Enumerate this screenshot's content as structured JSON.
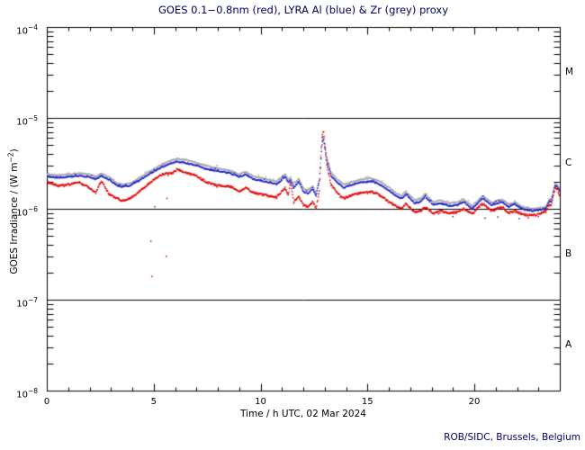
{
  "labels": {
    "credit": "ROB/SIDC, Brussels, Belgium"
  },
  "axes": {
    "ylabel_parts": {
      "prefix": "GOES Irradiance / (W m",
      "exp": "−2",
      "suffix": ")"
    },
    "y_ticks": [
      {
        "base": "10",
        "exp": "−4"
      },
      {
        "base": "10",
        "exp": "−5"
      },
      {
        "base": "10",
        "exp": "−6"
      },
      {
        "base": "10",
        "exp": "−7"
      },
      {
        "base": "10",
        "exp": "−8"
      }
    ],
    "x_ticks": [
      {
        "label": "0"
      },
      {
        "label": "5"
      },
      {
        "label": "10"
      },
      {
        "label": "15"
      },
      {
        "label": "20"
      }
    ]
  },
  "chart_data": {
    "type": "scatter",
    "title": "GOES 0.1−0.8nm (red), LYRA Al (blue) & Zr (grey) proxy",
    "xlabel": "Time / h UTC, 02 Mar 2024",
    "ylabel": "GOES Irradiance / (W m−2)",
    "x_range_hours": [
      0,
      24
    ],
    "x_major_ticks": [
      0,
      5,
      10,
      15,
      20
    ],
    "x_minor_step_hours": 1,
    "y_log_range_W_m2": [
      1e-08,
      0.0001
    ],
    "y_decade_gridline_exponents": [
      -5,
      -6,
      -7
    ],
    "flare_classes": [
      "M",
      "C",
      "B",
      "A"
    ],
    "value_units": "1e-6 W m-2",
    "frame_color": "#000000",
    "series": [
      {
        "name": "LYRA Zr proxy",
        "color": "#a8a8a8",
        "points": [
          [
            0,
            2.4
          ],
          [
            0.5,
            2.35
          ],
          [
            1,
            2.4
          ],
          [
            1.5,
            2.45
          ],
          [
            2,
            2.4
          ],
          [
            2.3,
            2.25
          ],
          [
            2.55,
            2.45
          ],
          [
            2.9,
            2.25
          ],
          [
            3.3,
            1.9
          ],
          [
            3.5,
            1.85
          ],
          [
            3.9,
            1.9
          ],
          [
            4.4,
            2.25
          ],
          [
            4.9,
            2.65
          ],
          [
            5.4,
            3.1
          ],
          [
            5.9,
            3.45
          ],
          [
            6.1,
            3.55
          ],
          [
            6.5,
            3.45
          ],
          [
            7,
            3.2
          ],
          [
            7.5,
            2.95
          ],
          [
            8,
            2.8
          ],
          [
            8.6,
            2.6
          ],
          [
            9,
            2.4
          ],
          [
            9.3,
            2.55
          ],
          [
            9.7,
            2.25
          ],
          [
            10,
            2.2
          ],
          [
            10.4,
            2.1
          ],
          [
            10.75,
            2.0
          ],
          [
            11.15,
            2.4
          ],
          [
            11.3,
            2.1
          ],
          [
            11.4,
            2.2
          ],
          [
            11.55,
            1.85
          ],
          [
            11.8,
            2.15
          ],
          [
            12.0,
            1.68
          ],
          [
            12.2,
            1.58
          ],
          [
            12.45,
            1.78
          ],
          [
            12.6,
            1.5
          ],
          [
            12.75,
            2.15
          ],
          [
            12.88,
            5.9
          ],
          [
            12.95,
            6.3
          ],
          [
            13.1,
            3.7
          ],
          [
            13.3,
            2.5
          ],
          [
            13.6,
            2.1
          ],
          [
            13.9,
            1.85
          ],
          [
            14.3,
            2.0
          ],
          [
            14.7,
            2.1
          ],
          [
            15.2,
            2.15
          ],
          [
            15.5,
            2.05
          ],
          [
            16,
            1.72
          ],
          [
            16.4,
            1.45
          ],
          [
            16.6,
            1.4
          ],
          [
            16.8,
            1.55
          ],
          [
            17.2,
            1.25
          ],
          [
            17.5,
            1.3
          ],
          [
            17.7,
            1.45
          ],
          [
            18.1,
            1.18
          ],
          [
            18.4,
            1.25
          ],
          [
            18.8,
            1.15
          ],
          [
            19.2,
            1.18
          ],
          [
            19.5,
            1.28
          ],
          [
            19.9,
            1.07
          ],
          [
            20.4,
            1.4
          ],
          [
            20.8,
            1.17
          ],
          [
            21.3,
            1.27
          ],
          [
            21.6,
            1.12
          ],
          [
            21.9,
            1.18
          ],
          [
            22.3,
            1.04
          ],
          [
            22.7,
            1.0
          ],
          [
            23.1,
            1.02
          ],
          [
            23.35,
            1.05
          ],
          [
            23.5,
            1.27
          ],
          [
            23.6,
            1.27
          ],
          [
            23.78,
            1.92
          ],
          [
            23.88,
            1.85
          ],
          [
            24,
            1.62
          ]
        ]
      },
      {
        "name": "LYRA Al proxy",
        "color": "#2020cc",
        "points": [
          [
            0,
            2.27
          ],
          [
            0.5,
            2.2
          ],
          [
            1,
            2.25
          ],
          [
            1.5,
            2.3
          ],
          [
            2,
            2.25
          ],
          [
            2.3,
            2.1
          ],
          [
            2.55,
            2.3
          ],
          [
            2.9,
            2.1
          ],
          [
            3.3,
            1.8
          ],
          [
            3.5,
            1.75
          ],
          [
            3.9,
            1.8
          ],
          [
            4.4,
            2.1
          ],
          [
            4.9,
            2.5
          ],
          [
            5.4,
            2.9
          ],
          [
            5.9,
            3.2
          ],
          [
            6.1,
            3.3
          ],
          [
            6.5,
            3.2
          ],
          [
            7,
            3.0
          ],
          [
            7.5,
            2.73
          ],
          [
            8,
            2.6
          ],
          [
            8.6,
            2.45
          ],
          [
            9,
            2.25
          ],
          [
            9.3,
            2.4
          ],
          [
            9.7,
            2.1
          ],
          [
            10,
            2.05
          ],
          [
            10.4,
            1.95
          ],
          [
            10.75,
            1.85
          ],
          [
            11.15,
            2.25
          ],
          [
            11.3,
            1.95
          ],
          [
            11.4,
            2.05
          ],
          [
            11.55,
            1.7
          ],
          [
            11.8,
            2.0
          ],
          [
            12.0,
            1.55
          ],
          [
            12.2,
            1.47
          ],
          [
            12.45,
            1.65
          ],
          [
            12.6,
            1.4
          ],
          [
            12.75,
            2.0
          ],
          [
            12.88,
            5.3
          ],
          [
            12.95,
            5.8
          ],
          [
            13.1,
            3.4
          ],
          [
            13.3,
            2.3
          ],
          [
            13.6,
            1.95
          ],
          [
            13.9,
            1.7
          ],
          [
            14.3,
            1.85
          ],
          [
            14.7,
            1.95
          ],
          [
            15.2,
            2.0
          ],
          [
            15.5,
            1.9
          ],
          [
            16,
            1.6
          ],
          [
            16.4,
            1.35
          ],
          [
            16.6,
            1.3
          ],
          [
            16.8,
            1.45
          ],
          [
            17.2,
            1.15
          ],
          [
            17.5,
            1.2
          ],
          [
            17.7,
            1.35
          ],
          [
            18.1,
            1.1
          ],
          [
            18.4,
            1.15
          ],
          [
            18.8,
            1.08
          ],
          [
            19.2,
            1.1
          ],
          [
            19.5,
            1.2
          ],
          [
            19.9,
            1.0
          ],
          [
            20.4,
            1.32
          ],
          [
            20.8,
            1.1
          ],
          [
            21.3,
            1.2
          ],
          [
            21.6,
            1.05
          ],
          [
            21.9,
            1.12
          ],
          [
            22.3,
            0.98
          ],
          [
            22.7,
            0.95
          ],
          [
            23.1,
            0.97
          ],
          [
            23.35,
            1.0
          ],
          [
            23.5,
            1.2
          ],
          [
            23.6,
            1.2
          ],
          [
            23.78,
            1.8
          ],
          [
            23.88,
            1.75
          ],
          [
            24,
            1.55
          ]
        ]
      },
      {
        "name": "GOES 0.1-0.8nm",
        "color": "#e00000",
        "points": [
          [
            0,
            1.97
          ],
          [
            0.5,
            1.8
          ],
          [
            1,
            1.85
          ],
          [
            1.5,
            1.95
          ],
          [
            2,
            1.7
          ],
          [
            2.3,
            1.5
          ],
          [
            2.55,
            2.05
          ],
          [
            2.9,
            1.45
          ],
          [
            3.3,
            1.3
          ],
          [
            3.5,
            1.22
          ],
          [
            3.9,
            1.3
          ],
          [
            4.4,
            1.6
          ],
          [
            4.9,
            2.0
          ],
          [
            5.4,
            2.4
          ],
          [
            5.9,
            2.5
          ],
          [
            6.1,
            2.7
          ],
          [
            6.5,
            2.5
          ],
          [
            7,
            2.3
          ],
          [
            7.5,
            1.94
          ],
          [
            8,
            1.8
          ],
          [
            8.6,
            1.75
          ],
          [
            9,
            1.55
          ],
          [
            9.3,
            1.7
          ],
          [
            9.7,
            1.5
          ],
          [
            10,
            1.45
          ],
          [
            10.4,
            1.38
          ],
          [
            10.75,
            1.35
          ],
          [
            11.15,
            1.7
          ],
          [
            11.3,
            1.45
          ],
          [
            11.4,
            1.95
          ],
          [
            11.55,
            1.2
          ],
          [
            11.8,
            1.35
          ],
          [
            12.0,
            1.1
          ],
          [
            12.2,
            1.05
          ],
          [
            12.45,
            1.2
          ],
          [
            12.6,
            1.0
          ],
          [
            12.75,
            1.6
          ],
          [
            12.88,
            6.5
          ],
          [
            12.95,
            7.0
          ],
          [
            13.1,
            3.0
          ],
          [
            13.3,
            1.85
          ],
          [
            13.6,
            1.5
          ],
          [
            13.9,
            1.3
          ],
          [
            14.3,
            1.42
          ],
          [
            14.7,
            1.5
          ],
          [
            15.2,
            1.55
          ],
          [
            15.5,
            1.45
          ],
          [
            16,
            1.2
          ],
          [
            16.4,
            1.05
          ],
          [
            16.6,
            1.0
          ],
          [
            16.8,
            1.15
          ],
          [
            17.2,
            0.92
          ],
          [
            17.5,
            0.95
          ],
          [
            17.7,
            1.05
          ],
          [
            18.1,
            0.88
          ],
          [
            18.4,
            0.95
          ],
          [
            18.8,
            0.9
          ],
          [
            19.2,
            0.92
          ],
          [
            19.5,
            1.0
          ],
          [
            19.9,
            0.88
          ],
          [
            20.4,
            1.15
          ],
          [
            20.8,
            0.95
          ],
          [
            21.3,
            1.05
          ],
          [
            21.6,
            0.9
          ],
          [
            21.9,
            0.95
          ],
          [
            22.3,
            0.86
          ],
          [
            22.7,
            0.85
          ],
          [
            23.1,
            0.88
          ],
          [
            23.35,
            0.95
          ],
          [
            23.5,
            1.1
          ],
          [
            23.6,
            1.1
          ],
          [
            23.78,
            1.7
          ],
          [
            23.88,
            1.65
          ],
          [
            24,
            1.4
          ]
        ]
      }
    ],
    "outliers": [
      {
        "series": "GOES 0.1-0.8nm",
        "color": "#e00000",
        "points": [
          [
            4.87,
            0.44
          ],
          [
            5.59,
            0.3
          ],
          [
            4.92,
            0.18
          ],
          [
            5.05,
            1.05
          ],
          [
            5.62,
            1.3
          ]
        ]
      },
      {
        "series": "LYRA Al proxy",
        "color": "#2020cc",
        "points": [
          [
            20.5,
            0.79
          ],
          [
            21.1,
            0.81
          ],
          [
            22.1,
            0.78
          ],
          [
            19.0,
            0.82
          ]
        ]
      }
    ]
  }
}
